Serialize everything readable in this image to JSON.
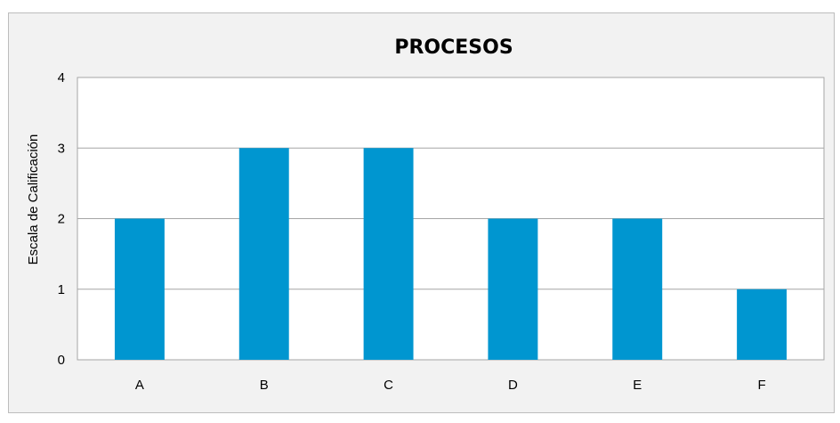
{
  "chart_data": {
    "type": "bar",
    "title": "PROCESOS",
    "xlabel": "",
    "ylabel": "Escala de Calificación",
    "categories": [
      "A",
      "B",
      "C",
      "D",
      "E",
      "F"
    ],
    "values": [
      2,
      3,
      3,
      2,
      2,
      1
    ],
    "ylim": [
      0,
      4
    ],
    "yticks": [
      0,
      1,
      2,
      3,
      4
    ],
    "grid": true,
    "legend": "none",
    "colors": {
      "bar": "#0096d0",
      "plot_bg": "#ffffff",
      "frame_bg": "#f2f2f2",
      "grid": "#a6a6a6"
    }
  }
}
